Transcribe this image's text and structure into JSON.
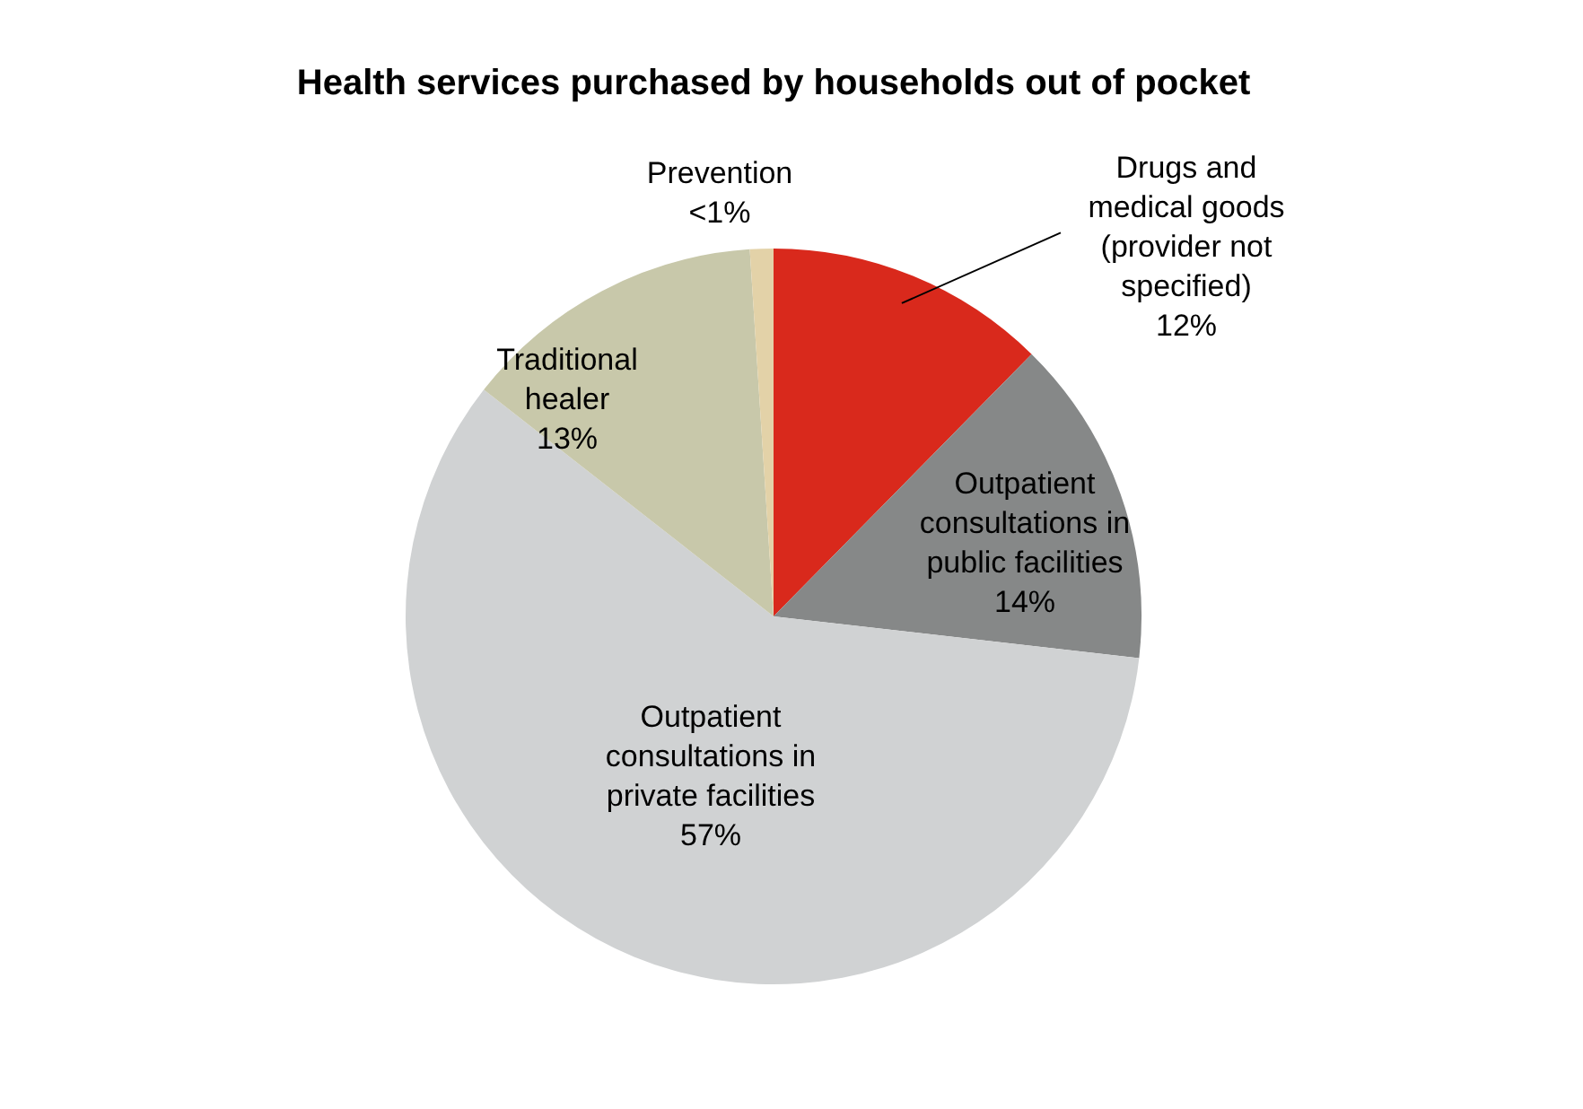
{
  "chart_data": {
    "type": "pie",
    "title": "Health services purchased by households out of pocket",
    "categories": [
      "Drugs and medical goods (provider not specified)",
      "Outpatient consultations in public facilities",
      "Outpatient consultations in private facilities",
      "Traditional healer",
      "Prevention"
    ],
    "values": [
      12,
      14,
      57,
      13,
      1
    ],
    "value_labels": [
      "12%",
      "14%",
      "57%",
      "13%",
      "<1%"
    ],
    "colors": [
      "#d9291c",
      "#868888",
      "#d0d2d3",
      "#c8c8aa",
      "#e3d2a8"
    ],
    "legend": false
  }
}
